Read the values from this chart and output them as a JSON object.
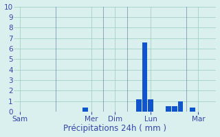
{
  "title": "",
  "xlabel": "Précipitations 24h ( mm )",
  "background_color": "#daf0ee",
  "bar_color": "#1055cc",
  "ylim": [
    0,
    10
  ],
  "yticks": [
    0,
    1,
    2,
    3,
    4,
    5,
    6,
    7,
    8,
    9,
    10
  ],
  "day_labels": [
    "Sam",
    "Mer",
    "Dim",
    "Lun",
    "Mar"
  ],
  "day_tick_positions": [
    1,
    13,
    17,
    23,
    31
  ],
  "vline_positions": [
    7,
    15,
    19,
    29
  ],
  "bars": [
    [
      1,
      0.0
    ],
    [
      2,
      0.0
    ],
    [
      3,
      0.0
    ],
    [
      4,
      0.0
    ],
    [
      5,
      0.0
    ],
    [
      6,
      0.0
    ],
    [
      8,
      0.0
    ],
    [
      9,
      0.0
    ],
    [
      10,
      0.0
    ],
    [
      11,
      0.0
    ],
    [
      12,
      0.4
    ],
    [
      13,
      0.0
    ],
    [
      14,
      0.0
    ],
    [
      16,
      0.0
    ],
    [
      17,
      0.0
    ],
    [
      18,
      0.0
    ],
    [
      20,
      0.0
    ],
    [
      21,
      1.2
    ],
    [
      22,
      6.6
    ],
    [
      23,
      1.2
    ],
    [
      24,
      0.0
    ],
    [
      25,
      0.0
    ],
    [
      26,
      0.5
    ],
    [
      27,
      0.5
    ],
    [
      28,
      1.0
    ],
    [
      30,
      0.4
    ],
    [
      31,
      0.0
    ],
    [
      32,
      0.0
    ]
  ],
  "xlim": [
    0,
    34
  ],
  "grid_color": "#99ccbb",
  "tick_color": "#3344aa",
  "label_fontsize": 7.5,
  "xlabel_fontsize": 8.5
}
